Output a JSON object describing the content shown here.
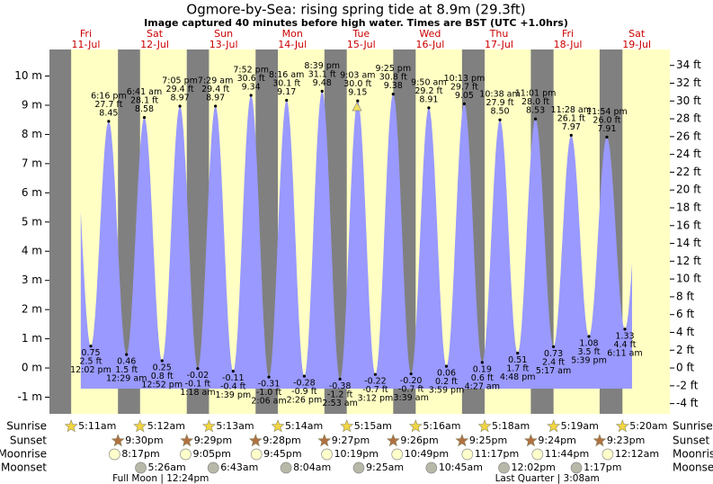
{
  "header": {
    "title": "Ogmore-by-Sea: rising  spring tide at 8.9m (29.3ft)",
    "subtitle": "Image captured 40 minutes before high water. Times are BST (UTC +1.0hrs)"
  },
  "chart_data": {
    "type": "area",
    "color": "#9999ff",
    "days": [
      {
        "name": "Fri",
        "date": "11-Jul"
      },
      {
        "name": "Sat",
        "date": "12-Jul"
      },
      {
        "name": "Sun",
        "date": "13-Jul"
      },
      {
        "name": "Mon",
        "date": "14-Jul"
      },
      {
        "name": "Tue",
        "date": "15-Jul"
      },
      {
        "name": "Wed",
        "date": "16-Jul"
      },
      {
        "name": "Thu",
        "date": "17-Jul"
      },
      {
        "name": "Fri",
        "date": "18-Jul"
      },
      {
        "name": "Sat",
        "date": "19-Jul"
      }
    ],
    "ylim": [
      -1.57,
      10.91
    ],
    "yticks": [
      {
        "value": 10,
        "label": "10 m"
      },
      {
        "value": 9,
        "label": "9 m"
      },
      {
        "value": 8,
        "label": "8 m"
      },
      {
        "value": 7,
        "label": "7 m"
      },
      {
        "value": 6,
        "label": "6 m"
      },
      {
        "value": 5,
        "label": "5 m"
      },
      {
        "value": 4,
        "label": "4 m"
      },
      {
        "value": 3,
        "label": "3 m"
      },
      {
        "value": 2,
        "label": "2 m"
      },
      {
        "value": 1,
        "label": "1 m"
      },
      {
        "value": 0,
        "label": "0 m"
      },
      {
        "value": -1,
        "label": "-1 m"
      }
    ],
    "y2lim": [
      -5.15,
      35.79
    ],
    "y2ticks": [
      {
        "value": 34,
        "label": "34 ft"
      },
      {
        "value": 32,
        "label": "32 ft"
      },
      {
        "value": 30,
        "label": "30 ft"
      },
      {
        "value": 28,
        "label": "28 ft"
      },
      {
        "value": 26,
        "label": "26 ft"
      },
      {
        "value": 24,
        "label": "24 ft"
      },
      {
        "value": 22,
        "label": "22 ft"
      },
      {
        "value": 20,
        "label": "20 ft"
      },
      {
        "value": 18,
        "label": "18 ft"
      },
      {
        "value": 16,
        "label": "16 ft"
      },
      {
        "value": 14,
        "label": "14 ft"
      },
      {
        "value": 12,
        "label": "12 ft"
      },
      {
        "value": 10,
        "label": "10 ft"
      },
      {
        "value": 8,
        "label": "8 ft"
      },
      {
        "value": 6,
        "label": "6 ft"
      },
      {
        "value": 4,
        "label": "4 ft"
      },
      {
        "value": 2,
        "label": "2 ft"
      },
      {
        "value": 0,
        "label": "0 ft"
      },
      {
        "value": -2,
        "label": "-2 ft"
      },
      {
        "value": -4,
        "label": "-4 ft"
      }
    ],
    "lows": [
      {
        "time": "12:02 pm",
        "height": 0.75,
        "feet": "2.5 ft"
      },
      {
        "time": "12:29 am",
        "height": 0.46,
        "feet": "1.5 ft"
      },
      {
        "time": "12:52 pm",
        "height": 0.25,
        "feet": "0.8 ft"
      },
      {
        "time": "1:18 am",
        "height": -0.02,
        "feet": "-0.1 ft"
      },
      {
        "time": "1:39 pm",
        "height": -0.11,
        "feet": "-0.4 ft"
      },
      {
        "time": "2:06 am",
        "height": -0.31,
        "feet": "-1.0 ft"
      },
      {
        "time": "2:26 pm",
        "height": -0.28,
        "feet": "-0.9 ft"
      },
      {
        "time": "2:53 am",
        "height": -0.38,
        "feet": "-1.2 ft"
      },
      {
        "time": "3:12 pm",
        "height": -0.22,
        "feet": "-0.7 ft"
      },
      {
        "time": "3:39 am",
        "height": -0.2,
        "label": "-0.20",
        "feet": "-0.7 ft"
      },
      {
        "time": "3:59 pm",
        "height": 0.06,
        "feet": "0.2 ft"
      },
      {
        "time": "4:27 am",
        "height": 0.19,
        "feet": "0.6 ft"
      },
      {
        "time": "4:48 pm",
        "height": 0.51,
        "feet": "1.7 ft"
      },
      {
        "time": "5:17 am",
        "height": 0.73,
        "feet": "2.4 ft"
      },
      {
        "time": "5:39 pm",
        "height": 1.08,
        "feet": "3.5 ft"
      },
      {
        "time": "6:11 am",
        "height": 1.33,
        "feet": "4.4 ft"
      }
    ],
    "highs": [
      {
        "time": "6:16 pm",
        "height": 8.45,
        "feet": "27.7 ft"
      },
      {
        "time": "6:41 am",
        "height": 8.58,
        "feet": "28.1 ft"
      },
      {
        "time": "7:05 pm",
        "height": 8.97,
        "feet": "29.4 ft"
      },
      {
        "time": "7:29 am",
        "height": 8.97,
        "feet": "29.4 ft"
      },
      {
        "time": "7:52 pm",
        "height": 9.34,
        "feet": "30.6 ft"
      },
      {
        "time": "8:16 am",
        "height": 9.17,
        "feet": "30.1 ft"
      },
      {
        "time": "8:39 pm",
        "height": 9.48,
        "feet": "31.1 ft"
      },
      {
        "time": "9:03 am",
        "height": 9.15,
        "feet": "30.0 ft"
      },
      {
        "time": "9:25 pm",
        "height": 9.38,
        "feet": "30.8 ft"
      },
      {
        "time": "9:50 am",
        "height": 8.91,
        "feet": "29.2 ft"
      },
      {
        "time": "10:13 pm",
        "height": 9.05,
        "feet": "29.7 ft"
      },
      {
        "time": "10:38 am",
        "height": 8.5,
        "label": "8.50",
        "feet": "27.9 ft"
      },
      {
        "time": "11:01 pm",
        "height": 8.53,
        "feet": "28.0 ft"
      },
      {
        "time": "11:28 am",
        "height": 7.97,
        "feet": "26.1 ft"
      },
      {
        "time": "11:54 pm",
        "height": 7.91,
        "feet": "26.0 ft"
      }
    ],
    "row_labels": [
      "Sunrise",
      "Sunset",
      "Moonrise",
      "Moonset"
    ],
    "sunrise": [
      "5:11am",
      "5:12am",
      "5:13am",
      "5:14am",
      "5:15am",
      "5:16am",
      "5:18am",
      "5:19am",
      "5:20am"
    ],
    "sunset": [
      "9:30pm",
      "9:29pm",
      "9:28pm",
      "9:27pm",
      "9:26pm",
      "9:25pm",
      "9:24pm",
      "9:23pm",
      null
    ],
    "moonrise": [
      "8:17pm",
      "9:05pm",
      "9:45pm",
      "10:19pm",
      "10:49pm",
      "11:17pm",
      "11:44pm",
      null,
      "12:12am"
    ],
    "moonset": [
      null,
      "5:26am",
      "6:43am",
      "8:04am",
      "9:25am",
      "10:45am",
      "12:02pm",
      "1:17pm",
      null
    ],
    "moon_phases": [
      null,
      "Full Moon | 12:24pm",
      null,
      null,
      null,
      null,
      null,
      "Last Quarter | 3:08am",
      null
    ]
  }
}
